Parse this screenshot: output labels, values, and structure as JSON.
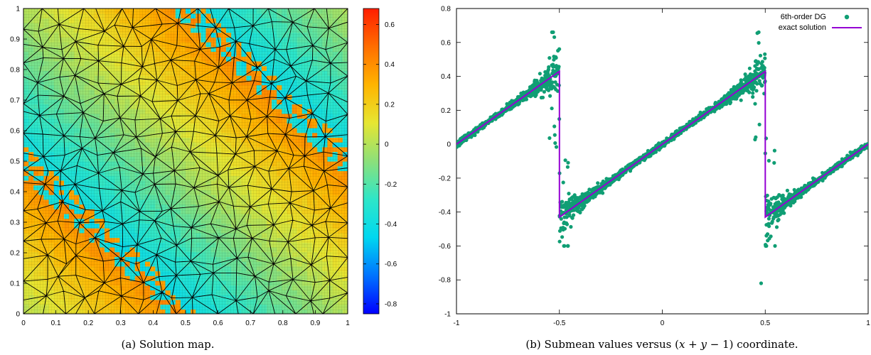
{
  "chart_data": [
    {
      "type": "heatmap",
      "caption": "(a) Solution map.",
      "xlim": [
        0,
        1
      ],
      "ylim": [
        0,
        1
      ],
      "x_ticks": [
        "0",
        "0.1",
        "0.2",
        "0.3",
        "0.4",
        "0.5",
        "0.6",
        "0.7",
        "0.8",
        "0.9",
        "1"
      ],
      "y_ticks": [
        "0",
        "0.1",
        "0.2",
        "0.3",
        "0.4",
        "0.5",
        "0.6",
        "0.7",
        "0.8",
        "0.9",
        "1"
      ],
      "colorbar": {
        "range": [
          -0.85,
          0.68
        ],
        "ticks": [
          "0.6",
          "0.4",
          "0.2",
          "0",
          "-0.2",
          "-0.4",
          "-0.6",
          "-0.8"
        ],
        "colors": [
          "#0000ff",
          "#0073ff",
          "#00d7f0",
          "#2ee6c8",
          "#8ce07a",
          "#e6e632",
          "#ffb400",
          "#ff6e00",
          "#ff1e00"
        ]
      },
      "mesh": "unstructured triangular mesh (black edges)"
    },
    {
      "type": "scatter",
      "caption_parts": [
        "(b) Submean values versus (",
        "x",
        " + ",
        "y",
        " − 1) coordinate."
      ],
      "xlim": [
        -1,
        1
      ],
      "ylim": [
        -1,
        0.8
      ],
      "x_ticks": [
        "-1",
        "-0.5",
        "0",
        "0.5",
        "1"
      ],
      "x_tick_values": [
        -1,
        -0.5,
        0,
        0.5,
        1
      ],
      "y_ticks": [
        "0.8",
        "0.6",
        "0.4",
        "0.2",
        "0",
        "-0.2",
        "-0.4",
        "-0.6",
        "-0.8",
        "-1"
      ],
      "y_tick_values": [
        0.8,
        0.6,
        0.4,
        0.2,
        0,
        -0.2,
        -0.4,
        -0.6,
        -0.8,
        -1
      ],
      "legend_position": "top-right",
      "series": [
        {
          "name": "6th-order DG",
          "style": "points",
          "color": "#109e74"
        },
        {
          "name": "exact solution",
          "style": "line",
          "color": "#9400d3",
          "points": [
            [
              -1,
              0
            ],
            [
              -0.5,
              0.43
            ],
            [
              -0.5,
              -0.43
            ],
            [
              0.5,
              0.43
            ],
            [
              0.5,
              -0.43
            ],
            [
              1,
              0
            ]
          ]
        }
      ],
      "notes": "scatter follows the sawtooth y = 0.86*s - 0.86*round(s); dense spread near the jumps at s = -0.5 and s = 0.5, with outliers up to 0.65 and down to -0.82"
    }
  ]
}
